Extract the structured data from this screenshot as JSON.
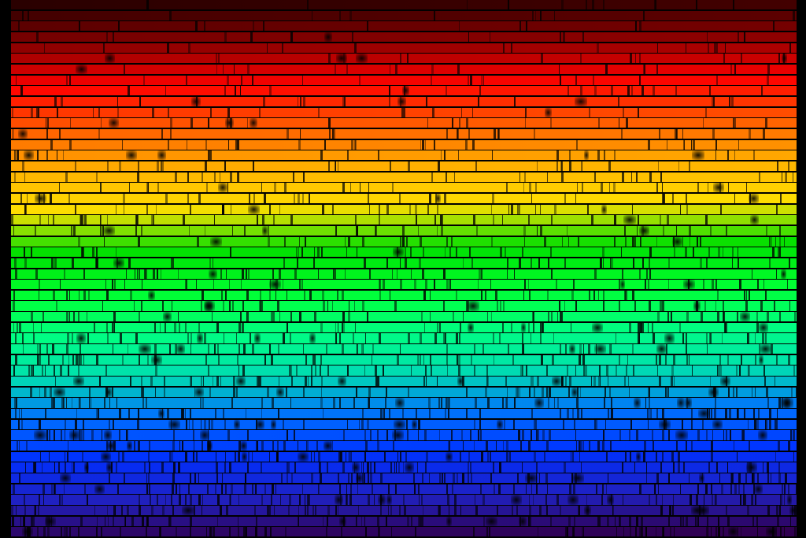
{
  "spectrum": {
    "color_stops": [
      "#2a0000",
      "#8a0000",
      "#ff0000",
      "#ff5a00",
      "#ffb000",
      "#ffe000",
      "#00e000",
      "#00ff30",
      "#00ff80",
      "#00e0b0",
      "#0070ff",
      "#0030ff",
      "#2020c0",
      "#300050"
    ],
    "absorption_line_color": "#000000",
    "background": "#000000"
  }
}
